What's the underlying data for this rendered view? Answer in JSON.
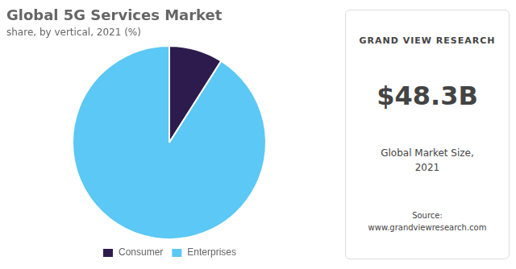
{
  "chart_data": {
    "type": "pie",
    "title": "Global 5G Services Market",
    "subtitle": "share, by vertical, 2021 (%)",
    "categories": [
      "Consumer",
      "Enterprises"
    ],
    "values": [
      9,
      91
    ],
    "colors": [
      "#2d1b4e",
      "#5bc8f5"
    ],
    "legend": "bottom",
    "annotations": [
      "GRAND VIEW RESEARCH",
      "$48.3B",
      "Global Market Size,\n2021",
      "Source:\nwww.grandviewresearch.com"
    ]
  }
}
